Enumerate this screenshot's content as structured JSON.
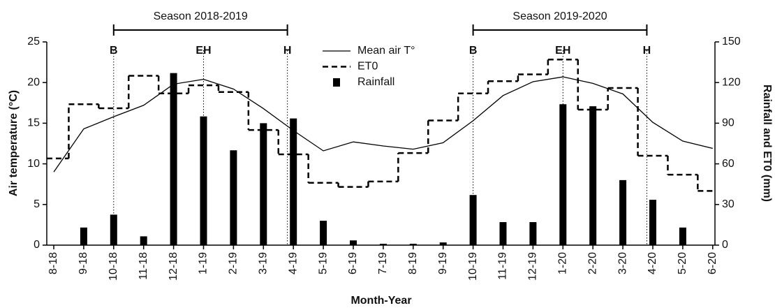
{
  "chart_data": {
    "type": "combo",
    "x_label": "Month-Year",
    "y_label": "Air temperature (°C)",
    "y2_label": "Rainfall and ET0 (mm)",
    "categories": [
      "8-18",
      "9-18",
      "10-18",
      "11-18",
      "12-18",
      "1-19",
      "2-19",
      "3-19",
      "4-19",
      "5-19",
      "6-19",
      "7-19",
      "8-19",
      "9-19",
      "10-19",
      "11-19",
      "12-19",
      "1-20",
      "2-20",
      "3-20",
      "4-20",
      "5-20",
      "6-20"
    ],
    "ylim": [
      0,
      25
    ],
    "yticks": [
      0,
      5,
      10,
      15,
      20,
      25
    ],
    "y2lim": [
      0,
      150
    ],
    "y2ticks": [
      0,
      30,
      60,
      90,
      120,
      150
    ],
    "series": [
      {
        "name": "Mean air T°",
        "style": "line",
        "color": "#000000",
        "values": [
          9,
          14.3,
          15.8,
          17.2,
          19.8,
          20.4,
          19.2,
          16.8,
          14.1,
          11.6,
          12.7,
          12.2,
          11.8,
          12.6,
          15.3,
          18.4,
          20.1,
          20.7,
          19.9,
          18.6,
          15.1,
          12.8,
          11.9
        ]
      },
      {
        "name": "ET0",
        "style": "step",
        "color": "#000000",
        "axis": "y2",
        "values": [
          64,
          104,
          101,
          125,
          112,
          118,
          113,
          85,
          67,
          46,
          43,
          47,
          68,
          92,
          112,
          121,
          126,
          137,
          100,
          116,
          66,
          52,
          40
        ]
      },
      {
        "name": "Rainfall",
        "style": "bar",
        "color": "#000000",
        "axis": "y2",
        "values": [
          0,
          13,
          22.5,
          6.5,
          127,
          95,
          70,
          90,
          93.5,
          18,
          3.5,
          1,
          1,
          2,
          37,
          17,
          17,
          104,
          102.5,
          48,
          33.5,
          13,
          0
        ]
      }
    ],
    "markers": [
      {
        "label": "B",
        "at": 2
      },
      {
        "label": "EH",
        "at": 5
      },
      {
        "label": "H",
        "at": 7.8
      },
      {
        "label": "B",
        "at": 14
      },
      {
        "label": "EH",
        "at": 17
      },
      {
        "label": "H",
        "at": 19.8
      }
    ],
    "seasons": [
      {
        "label": "Season 2018-2019",
        "from": 2,
        "to": 7.8
      },
      {
        "label": "Season 2019-2020",
        "from": 14,
        "to": 19.8
      }
    ]
  }
}
